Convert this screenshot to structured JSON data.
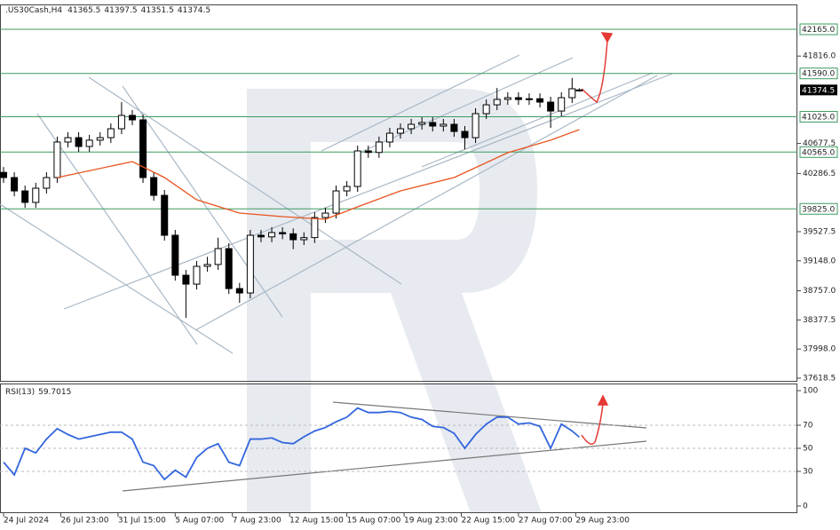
{
  "chart_data": {
    "type": "candlestick",
    "title": ".US30Cash,H4",
    "up_color": "#ffffff",
    "down_color": "#000000",
    "xlim": [
      -1,
      222
    ],
    "xticks": [
      {
        "value": 0,
        "label": "24 Jul 2024"
      },
      {
        "value": 16,
        "label": "26 Jul 23:00"
      },
      {
        "value": 32,
        "label": "31 Jul 15:00"
      },
      {
        "value": 48,
        "label": "5 Aug 07:00"
      },
      {
        "value": 64,
        "label": "7 Aug 23:00"
      },
      {
        "value": 80,
        "label": "12 Aug 15:00"
      },
      {
        "value": 96,
        "label": "15 Aug 07:00"
      },
      {
        "value": 112,
        "label": "19 Aug 23:00"
      },
      {
        "value": 128,
        "label": "22 Aug 15:00"
      },
      {
        "value": 144,
        "label": "27 Aug 07:00"
      },
      {
        "value": 160,
        "label": "29 Aug 23:00"
      }
    ],
    "ylim": [
      37572,
      42489
    ],
    "yticks": [
      {
        "value": 41816,
        "label": "41816.0"
      },
      {
        "value": 40677.5,
        "label": "40677.5"
      },
      {
        "value": 40286.5,
        "label": "40286.5"
      },
      {
        "value": 39527.5,
        "label": "39527.5"
      },
      {
        "value": 39148,
        "label": "39148.0"
      },
      {
        "value": 38757,
        "label": "38757.0"
      },
      {
        "value": 38377.5,
        "label": "38377.5"
      },
      {
        "value": 37998,
        "label": "37998.0"
      },
      {
        "value": 37618.5,
        "label": "37618.5"
      }
    ],
    "level_color": "#3c9a5f",
    "levels": [
      {
        "value": 42165,
        "label": "42165.0"
      },
      {
        "value": 41590,
        "label": "41590.0"
      },
      {
        "value": 41025,
        "label": "41025.0"
      },
      {
        "value": 40565,
        "label": "40565.0"
      },
      {
        "value": 39825,
        "label": "39825.0"
      }
    ],
    "x": [
      0,
      3,
      6,
      9,
      12,
      15,
      18,
      21,
      24,
      27,
      30,
      33,
      36,
      39,
      42,
      45,
      48,
      51,
      54,
      57,
      60,
      63,
      66,
      69,
      72,
      75,
      78,
      81,
      84,
      87,
      90,
      93,
      96,
      99,
      102,
      105,
      108,
      111,
      114,
      117,
      120,
      123,
      126,
      129,
      132,
      135,
      138,
      141,
      144,
      147,
      150,
      153,
      156,
      159,
      161
    ],
    "candles": [
      [
        40300,
        40370,
        40163,
        40233
      ],
      [
        40233,
        40303,
        39989,
        40059
      ],
      [
        40059,
        40129,
        39839,
        39909
      ],
      [
        39909,
        40164,
        39839,
        40094
      ],
      [
        40094,
        40303,
        40024,
        40233
      ],
      [
        40233,
        40766,
        40163,
        40696
      ],
      [
        40696,
        40823,
        40626,
        40753
      ],
      [
        40753,
        40823,
        40568,
        40638
      ],
      [
        40638,
        40790,
        40568,
        40720
      ],
      [
        40720,
        40823,
        40650,
        40753
      ],
      [
        40753,
        40939,
        40683,
        40869
      ],
      [
        40869,
        41216,
        40799,
        41043
      ],
      [
        41043,
        41113,
        40915,
        40985
      ],
      [
        40985,
        41055,
        40163,
        40233
      ],
      [
        40233,
        40303,
        39931,
        40001
      ],
      [
        40001,
        40071,
        39411,
        39481
      ],
      [
        39481,
        39551,
        38890,
        38960
      ],
      [
        38960,
        39030,
        38405,
        38844
      ],
      [
        38844,
        39146,
        38774,
        39076
      ],
      [
        39076,
        39200,
        39006,
        39100
      ],
      [
        39100,
        39450,
        39030,
        39307
      ],
      [
        39307,
        39377,
        38716,
        38786
      ],
      [
        38786,
        38860,
        38600,
        38729
      ],
      [
        38729,
        39551,
        38659,
        39481
      ],
      [
        39481,
        39551,
        39390,
        39460
      ],
      [
        39460,
        39586,
        39390,
        39516
      ],
      [
        39516,
        39586,
        39430,
        39500
      ],
      [
        39500,
        39570,
        39300,
        39423
      ],
      [
        39423,
        39520,
        39353,
        39450
      ],
      [
        39450,
        39782,
        39380,
        39712
      ],
      [
        39712,
        39840,
        39642,
        39770
      ],
      [
        39770,
        40129,
        39700,
        40059
      ],
      [
        40059,
        40187,
        39989,
        40117
      ],
      [
        40117,
        40650,
        40047,
        40580
      ],
      [
        40580,
        40650,
        40490,
        40560
      ],
      [
        40560,
        40766,
        40490,
        40696
      ],
      [
        40696,
        40881,
        40626,
        40811
      ],
      [
        40811,
        40939,
        40741,
        40869
      ],
      [
        40869,
        40997,
        40799,
        40927
      ],
      [
        40927,
        41020,
        40857,
        40950
      ],
      [
        40950,
        41020,
        40834,
        40904
      ],
      [
        40904,
        40997,
        40834,
        40927
      ],
      [
        40927,
        40997,
        40764,
        40834
      ],
      [
        40834,
        40904,
        40600,
        40753
      ],
      [
        40753,
        41136,
        40683,
        41066
      ],
      [
        41066,
        41251,
        40996,
        41181
      ],
      [
        41181,
        41400,
        41111,
        41251
      ],
      [
        41251,
        41344,
        41181,
        41274
      ],
      [
        41274,
        41344,
        41180,
        41250
      ],
      [
        41250,
        41330,
        41180,
        41260
      ],
      [
        41260,
        41330,
        41146,
        41216
      ],
      [
        41216,
        41286,
        40880,
        41100
      ],
      [
        41100,
        41344,
        41030,
        41274
      ],
      [
        41274,
        41530,
        41204,
        41390
      ],
      [
        41365.5,
        41397.5,
        41351.5,
        41374.5
      ]
    ],
    "ma": {
      "color": "#e8541e",
      "x": [
        15,
        36,
        45,
        54,
        66,
        78,
        90,
        99,
        111,
        126,
        141,
        153,
        161
      ],
      "values": [
        40233,
        40441,
        40233,
        39944,
        39770,
        39724,
        39689,
        39851,
        40059,
        40233,
        40557,
        40720,
        40858
      ]
    },
    "rsi": {
      "label": "RSI(13)",
      "color": "#3366dd",
      "ylim": [
        -6.2,
        105.4
      ],
      "yticks": [
        0,
        30,
        50,
        70,
        100
      ],
      "levels": [
        30,
        50,
        70
      ],
      "values": [
        38,
        27,
        50,
        46,
        58,
        67,
        62,
        58,
        60,
        62,
        64,
        64,
        58,
        38,
        35,
        23,
        31,
        25,
        42,
        50,
        54,
        38,
        35,
        58,
        58,
        59,
        55,
        54,
        60,
        65,
        68,
        73,
        77,
        85,
        81,
        81,
        82,
        81,
        77,
        75,
        69,
        68,
        63,
        50,
        62,
        71,
        77,
        77,
        71,
        72,
        69,
        50,
        71,
        65,
        59.7015
      ]
    }
  }
}
